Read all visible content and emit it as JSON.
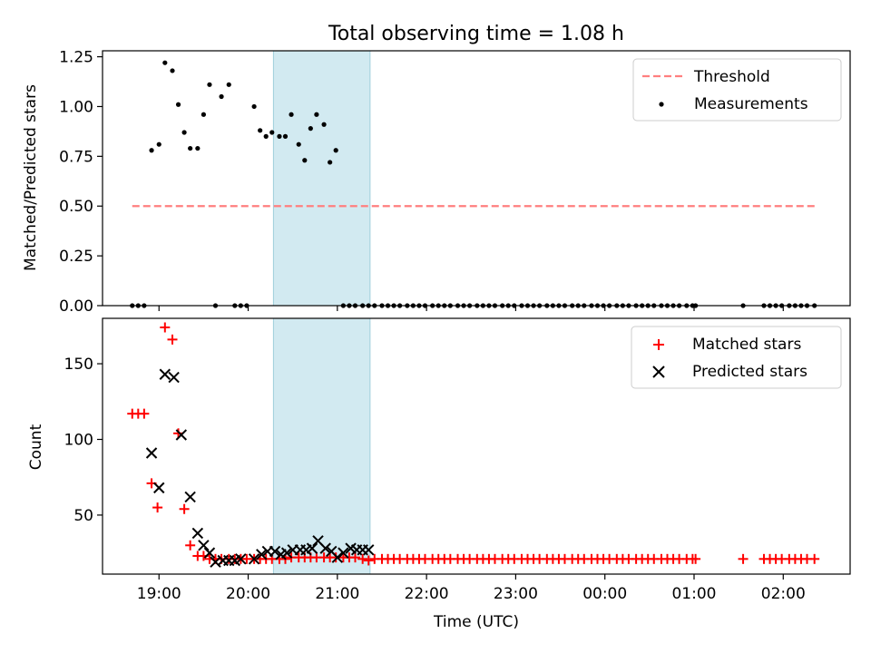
{
  "title": "Total observing time = 1.08 h",
  "top_ylabel": "Matched/Predicted stars",
  "bottom_ylabel": "Count",
  "xlabel": "Time (UTC)",
  "chart_data": [
    {
      "type": "scatter",
      "ylabel": "Matched/Predicted stars",
      "ylim": [
        0,
        1.28
      ],
      "yticks": [
        "0.00",
        "0.25",
        "0.50",
        "0.75",
        "1.00",
        "1.25"
      ],
      "shaded_interval": [
        "20:17",
        "21:22"
      ],
      "threshold": {
        "name": "Threshold",
        "value": 0.5,
        "x_start": "18:42",
        "x_end": "02:22",
        "color": "#ff7f7f"
      },
      "measurements": {
        "name": "Measurements",
        "color": "#000000",
        "x": [
          "18:42",
          "18:46",
          "18:50",
          "18:55",
          "19:00",
          "19:04",
          "19:09",
          "19:13",
          "19:17",
          "19:21",
          "19:26",
          "19:30",
          "19:34",
          "19:38",
          "19:42",
          "19:47",
          "19:51",
          "19:55",
          "19:59",
          "20:04",
          "20:08",
          "20:12",
          "20:16",
          "20:21",
          "20:25",
          "20:29",
          "20:34",
          "20:38",
          "20:42",
          "20:46",
          "20:51",
          "20:55",
          "20:59",
          "21:04",
          "21:08",
          "21:12",
          "21:17",
          "21:21",
          "21:25",
          "21:30",
          "21:34",
          "21:38",
          "21:42",
          "21:47",
          "21:51",
          "21:55",
          "21:59",
          "22:04",
          "22:08",
          "22:12",
          "22:16",
          "22:21",
          "22:25",
          "22:29",
          "22:34",
          "22:38",
          "22:42",
          "22:46",
          "22:51",
          "22:55",
          "22:59",
          "23:04",
          "23:08",
          "23:12",
          "23:16",
          "23:21",
          "23:25",
          "23:29",
          "23:33",
          "23:38",
          "23:42",
          "23:46",
          "23:51",
          "23:55",
          "23:59",
          "00:03",
          "00:08",
          "00:12",
          "00:16",
          "00:21",
          "00:25",
          "00:29",
          "00:33",
          "00:38",
          "00:42",
          "00:46",
          "00:50",
          "00:55",
          "00:59",
          "01:01",
          "01:33",
          "01:47",
          "01:51",
          "01:55",
          "01:59",
          "02:04",
          "02:08",
          "02:12",
          "02:16",
          "02:21"
        ],
        "y": [
          0,
          0,
          0,
          0.78,
          0.81,
          1.22,
          1.18,
          1.01,
          0.87,
          0.79,
          0.79,
          0.96,
          1.11,
          0,
          1.05,
          1.11,
          0,
          0,
          0,
          1.0,
          0.88,
          0.85,
          0.87,
          0.85,
          0.85,
          0.96,
          0.81,
          0.73,
          0.89,
          0.96,
          0.91,
          0.72,
          0.78,
          0,
          0,
          0,
          0,
          0,
          0,
          0,
          0,
          0,
          0,
          0,
          0,
          0,
          0,
          0,
          0,
          0,
          0,
          0,
          0,
          0,
          0,
          0,
          0,
          0,
          0,
          0,
          0,
          0,
          0,
          0,
          0,
          0,
          0,
          0,
          0,
          0,
          0,
          0,
          0,
          0,
          0,
          0,
          0,
          0,
          0,
          0,
          0,
          0,
          0,
          0,
          0,
          0,
          0,
          0,
          0,
          0,
          0,
          0,
          0,
          0,
          0,
          0,
          0,
          0,
          0,
          0
        ]
      }
    },
    {
      "type": "scatter",
      "ylabel": "Count",
      "ylim": [
        11,
        180
      ],
      "yticks": [
        "50",
        "100",
        "150"
      ],
      "xlim": [
        "18:22",
        "02:45"
      ],
      "xticks": [
        "19:00",
        "20:00",
        "21:00",
        "22:00",
        "23:00",
        "00:00",
        "01:00",
        "02:00"
      ],
      "shaded_interval": [
        "20:17",
        "21:22"
      ],
      "series": [
        {
          "name": "Matched stars",
          "marker": "plus",
          "color": "#ff0000",
          "x": [
            "18:42",
            "18:46",
            "18:50",
            "18:55",
            "18:59",
            "19:04",
            "19:09",
            "19:13",
            "19:17",
            "19:21",
            "19:26",
            "19:30",
            "19:34",
            "19:38",
            "19:42",
            "19:47",
            "19:51",
            "19:55",
            "19:59",
            "20:04",
            "20:08",
            "20:12",
            "20:16",
            "20:21",
            "20:25",
            "20:29",
            "20:34",
            "20:38",
            "20:42",
            "20:46",
            "20:51",
            "20:55",
            "20:59",
            "21:04",
            "21:08",
            "21:12",
            "21:17",
            "21:21",
            "21:25",
            "21:30",
            "21:34",
            "21:38",
            "21:42",
            "21:47",
            "21:51",
            "21:55",
            "21:59",
            "22:04",
            "22:08",
            "22:12",
            "22:16",
            "22:21",
            "22:25",
            "22:29",
            "22:34",
            "22:38",
            "22:42",
            "22:46",
            "22:51",
            "22:55",
            "22:59",
            "23:04",
            "23:08",
            "23:12",
            "23:16",
            "23:21",
            "23:25",
            "23:29",
            "23:33",
            "23:38",
            "23:42",
            "23:46",
            "23:51",
            "23:55",
            "23:59",
            "00:03",
            "00:08",
            "00:12",
            "00:16",
            "00:21",
            "00:25",
            "00:29",
            "00:33",
            "00:38",
            "00:42",
            "00:46",
            "00:50",
            "00:55",
            "00:59",
            "01:01",
            "01:33",
            "01:47",
            "01:51",
            "01:55",
            "01:59",
            "02:04",
            "02:08",
            "02:12",
            "02:16",
            "02:21"
          ],
          "y": [
            117,
            117,
            117,
            71,
            55,
            174,
            166,
            104,
            54,
            30,
            23,
            23,
            21,
            21,
            21,
            21,
            21,
            21,
            21,
            21,
            21,
            21,
            21,
            21,
            21,
            22,
            22,
            22,
            22,
            22,
            22,
            22,
            22,
            22,
            22,
            22,
            21,
            20,
            21,
            21,
            21,
            21,
            21,
            21,
            21,
            21,
            21,
            21,
            21,
            21,
            21,
            21,
            21,
            21,
            21,
            21,
            21,
            21,
            21,
            21,
            21,
            21,
            21,
            21,
            21,
            21,
            21,
            21,
            21,
            21,
            21,
            21,
            21,
            21,
            21,
            21,
            21,
            21,
            21,
            21,
            21,
            21,
            21,
            21,
            21,
            21,
            21,
            21,
            21,
            21,
            21,
            21,
            21,
            21,
            21,
            21,
            21,
            21,
            21,
            21
          ]
        },
        {
          "name": "Predicted stars",
          "marker": "x",
          "color": "#000000",
          "x": [
            "18:55",
            "19:00",
            "19:04",
            "19:10",
            "19:15",
            "19:21",
            "19:26",
            "19:30",
            "19:34",
            "19:38",
            "19:43",
            "19:47",
            "19:51",
            "19:55",
            "20:04",
            "20:09",
            "20:13",
            "20:18",
            "20:22",
            "20:26",
            "20:30",
            "20:35",
            "20:39",
            "20:43",
            "20:47",
            "20:52",
            "20:56",
            "21:00",
            "21:04",
            "21:09",
            "21:13",
            "21:17",
            "21:21"
          ],
          "y": [
            91,
            68,
            143,
            141,
            103,
            62,
            38,
            30,
            25,
            19,
            20,
            20,
            20,
            21,
            21,
            24,
            26,
            26,
            24,
            25,
            27,
            27,
            27,
            28,
            33,
            28,
            26,
            22,
            25,
            28,
            27,
            27,
            27
          ]
        }
      ]
    }
  ]
}
